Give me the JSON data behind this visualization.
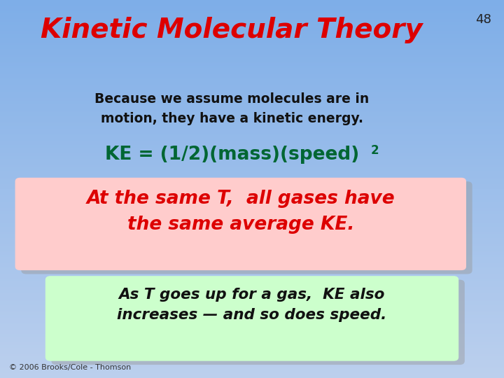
{
  "title": "Kinetic Molecular Theory",
  "title_color": "#dd0000",
  "slide_number": "48",
  "slide_number_color": "#222222",
  "body_text": "Because we assume molecules are in\nmotion, they have a kinetic energy.",
  "body_text_color": "#111111",
  "formula_main": "KE = (1/2)(mass)(speed)",
  "formula_super": "2",
  "formula_color": "#006633",
  "box1_text": "At the same T,  all gases have\nthe same average KE.",
  "box1_text_color": "#dd0000",
  "box1_bg": "#ffcccc",
  "box1_shadow": "#999999",
  "box2_text": "As T goes up for a gas,  KE also\nincreases — and so does speed.",
  "box2_text_color": "#111111",
  "box2_bg": "#ccffcc",
  "box2_shadow": "#999999",
  "footer_text": "© 2006 Brooks/Cole - Thomson",
  "footer_color": "#333333",
  "bg_top": "#7eaee8",
  "bg_bottom": "#bcd0ee"
}
